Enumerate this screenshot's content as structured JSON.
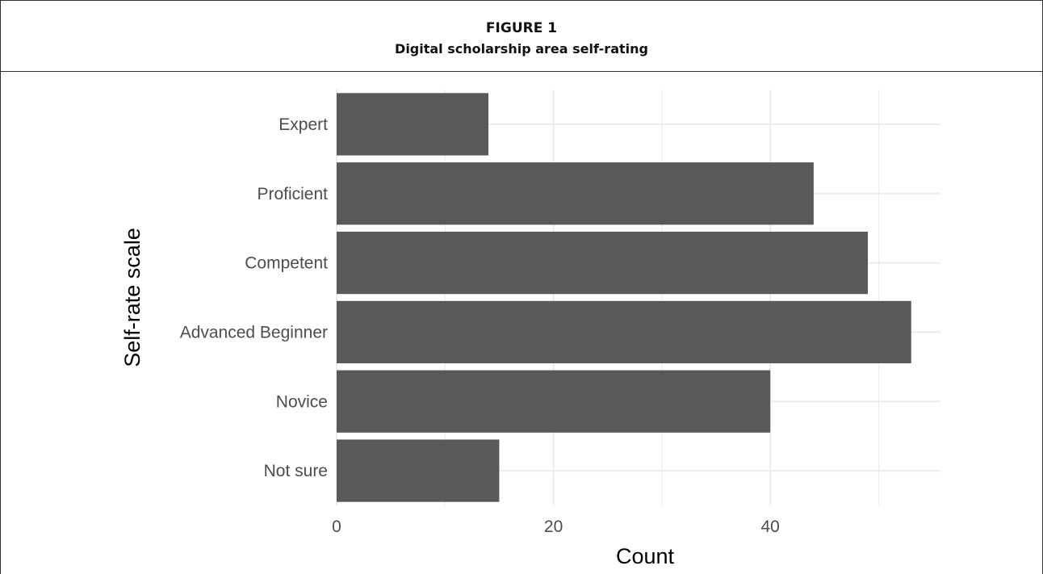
{
  "figure": {
    "label": "FIGURE 1",
    "title": "Digital scholarship area self-rating"
  },
  "chart_data": {
    "type": "bar",
    "orientation": "horizontal",
    "categories": [
      "Expert",
      "Proficient",
      "Competent",
      "Advanced Beginner",
      "Novice",
      "Not sure"
    ],
    "values": [
      14,
      44,
      49,
      53,
      40,
      15
    ],
    "xlabel": "Count",
    "ylabel": "Self-rate scale",
    "xlim": [
      0,
      55.7
    ],
    "xticks": [
      "0",
      "20",
      "40"
    ],
    "grid": true,
    "bar_color": "#595959",
    "grid_color": "#ebebeb"
  }
}
